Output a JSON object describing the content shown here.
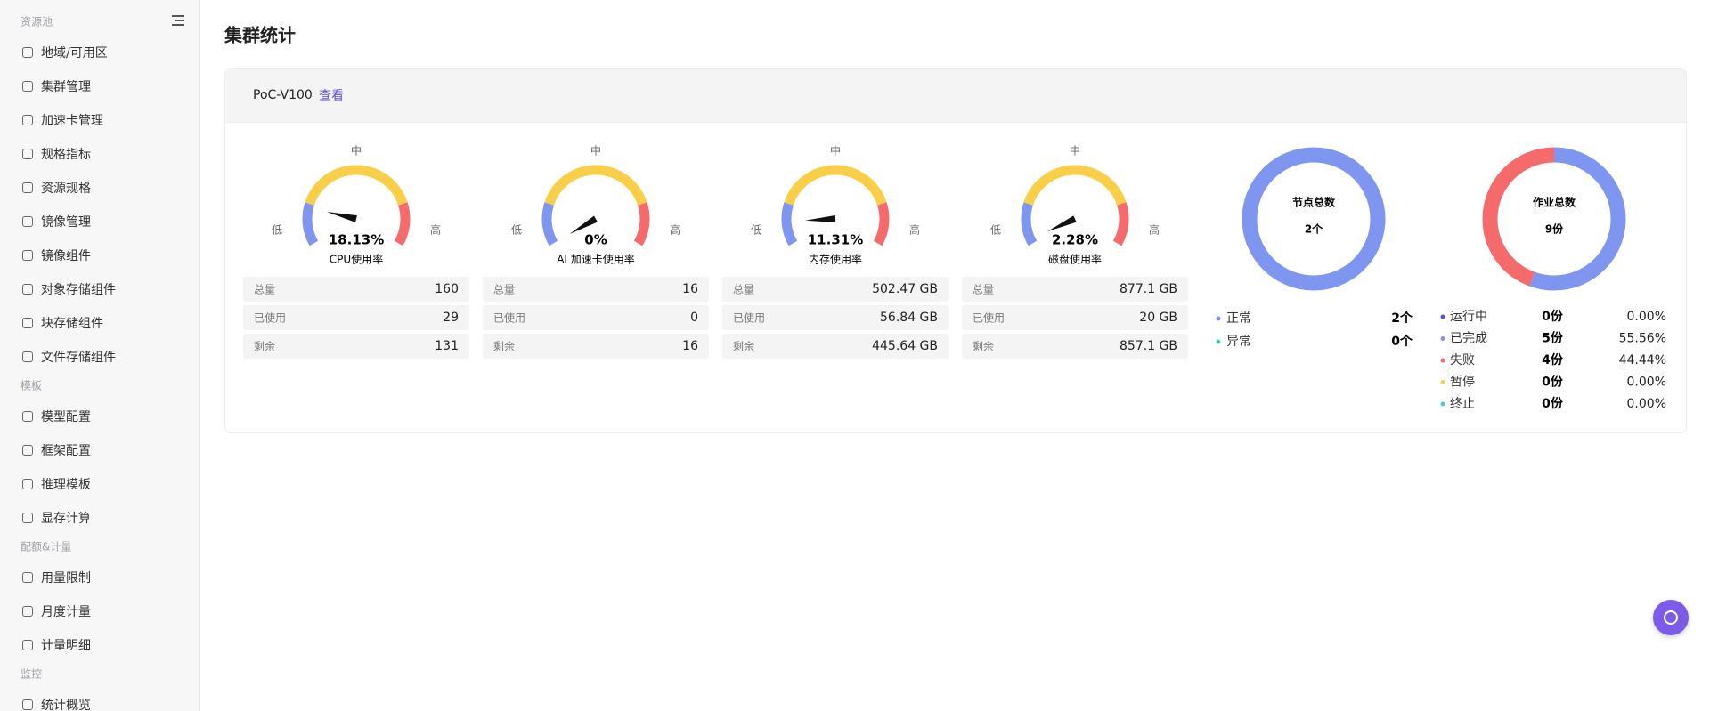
{
  "sidebar": [
    {
      "title": "资源池",
      "items": [
        "地域/可用区",
        "集群管理",
        "加速卡管理",
        "规格指标",
        "资源规格",
        "镜像管理",
        "镜像组件",
        "对象存储组件",
        "块存储组件",
        "文件存储组件"
      ]
    },
    {
      "title": "模板",
      "items": [
        "模型配置",
        "框架配置",
        "推理模板",
        "显存计算"
      ]
    },
    {
      "title": "配额&计量",
      "items": [
        "用量限制",
        "月度计量",
        "计量明细"
      ]
    },
    {
      "title": "监控",
      "items": [
        "统计概览"
      ]
    }
  ],
  "page_title": "集群统计",
  "card": {
    "name": "PoC-V100",
    "link": "查看",
    "gauge_labels": {
      "low": "低",
      "mid": "中",
      "high": "高"
    },
    "gauge_colors": [
      "#7f96f0",
      "#f9cf4a",
      "#f56b6b"
    ],
    "gauges": [
      {
        "label": "CPU使用率",
        "value": 18.13,
        "value_label": "18.13%",
        "rows": [
          [
            "总量",
            "160"
          ],
          [
            "已使用",
            "29"
          ],
          [
            "剩余",
            "131"
          ]
        ]
      },
      {
        "label": "AI 加速卡使用率",
        "value": 0,
        "value_label": "0%",
        "rows": [
          [
            "总量",
            "16"
          ],
          [
            "已使用",
            "0"
          ],
          [
            "剩余",
            "16"
          ]
        ]
      },
      {
        "label": "内存使用率",
        "value": 11.31,
        "value_label": "11.31%",
        "rows": [
          [
            "总量",
            "502.47 GB"
          ],
          [
            "已使用",
            "56.84 GB"
          ],
          [
            "剩余",
            "445.64 GB"
          ]
        ]
      },
      {
        "label": "磁盘使用率",
        "value": 2.28,
        "value_label": "2.28%",
        "rows": [
          [
            "总量",
            "877.1 GB"
          ],
          [
            "已使用",
            "20 GB"
          ],
          [
            "剩余",
            "857.1 GB"
          ]
        ]
      }
    ],
    "nodes": {
      "title": "节点总数",
      "total_label": "2个",
      "series": [
        {
          "name": "正常",
          "color": "#7f96f0",
          "value": 2,
          "value_label": "2个"
        },
        {
          "name": "异常",
          "color": "#4fc9d6",
          "value": 0,
          "value_label": "0个"
        }
      ]
    },
    "jobs": {
      "title": "作业总数",
      "total_label": "9份",
      "series": [
        {
          "name": "运行中",
          "color": "#4a5bd6",
          "value": 0,
          "value_label": "0份",
          "percent": "0.00%"
        },
        {
          "name": "已完成",
          "color": "#7f96f0",
          "value": 5,
          "value_label": "5份",
          "percent": "55.56%"
        },
        {
          "name": "失败",
          "color": "#f56b6b",
          "value": 4,
          "value_label": "4份",
          "percent": "44.44%"
        },
        {
          "name": "暂停",
          "color": "#f9cf4a",
          "value": 0,
          "value_label": "0份",
          "percent": "0.00%"
        },
        {
          "name": "终止",
          "color": "#4fc9d6",
          "value": 0,
          "value_label": "0份",
          "percent": "0.00%"
        }
      ]
    }
  }
}
